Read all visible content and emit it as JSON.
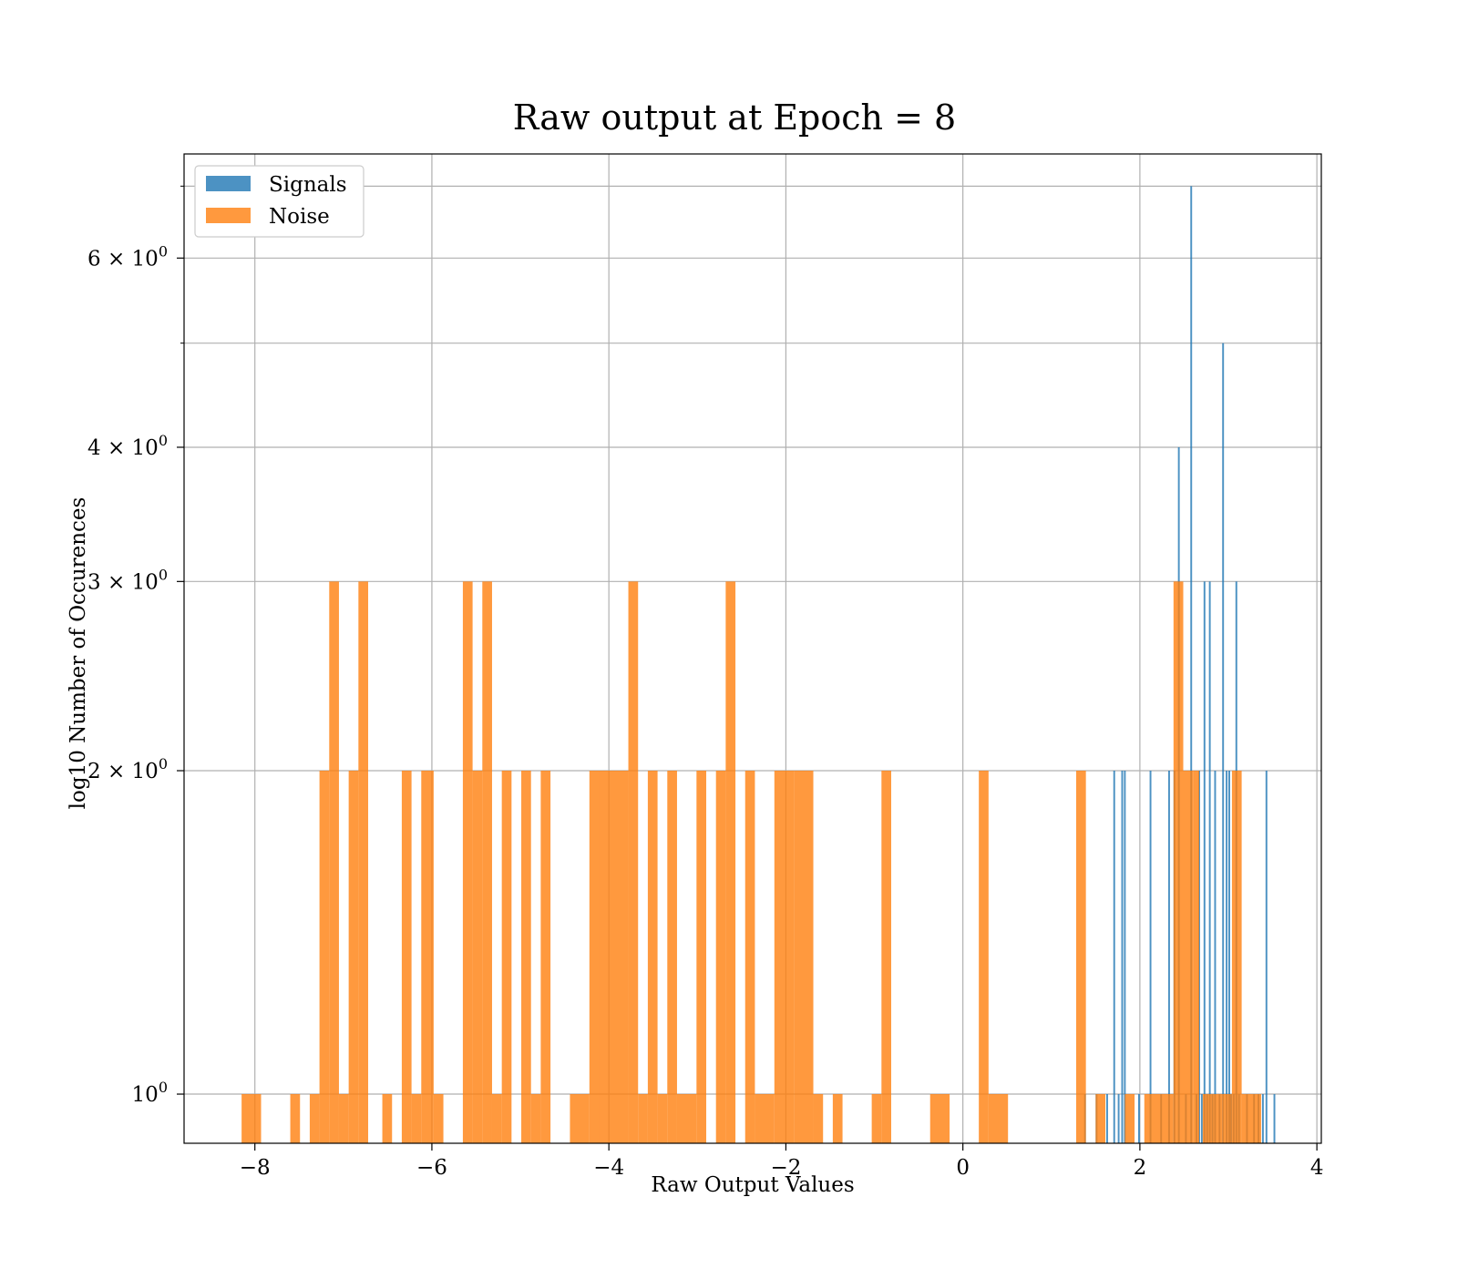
{
  "chart_data": {
    "type": "bar",
    "title": "Raw output at Epoch = 8",
    "xlabel": "Raw Output Values",
    "ylabel": "log10 Number of Occurences",
    "yscale": "log",
    "xlim": [
      -8.8,
      4.05
    ],
    "ylim": [
      0.9,
      7.5
    ],
    "grid": true,
    "legend_position": "top-left",
    "x_ticks": [
      {
        "value": -8,
        "label": "−8"
      },
      {
        "value": -6,
        "label": "−6"
      },
      {
        "value": -4,
        "label": "−4"
      },
      {
        "value": -2,
        "label": "−2"
      },
      {
        "value": 0,
        "label": "0"
      },
      {
        "value": 2,
        "label": "2"
      },
      {
        "value": 4,
        "label": "4"
      }
    ],
    "y_ticks": [
      {
        "value": 1,
        "base": "10",
        "exp": "0"
      },
      {
        "value": 2,
        "base": "2 × 10",
        "exp": "0"
      },
      {
        "value": 3,
        "base": "3 × 10",
        "exp": "0"
      },
      {
        "value": 4,
        "base": "4 × 10",
        "exp": "0"
      },
      {
        "value": 6,
        "base": "6 × 10",
        "exp": "0"
      }
    ],
    "y_minor_ticks": [
      5,
      7
    ],
    "series": [
      {
        "name": "Signals",
        "color": "#1f77b4",
        "bins": [
          {
            "x0": 1.37,
            "x1": 1.39,
            "y": 1
          },
          {
            "x0": 1.5,
            "x1": 1.52,
            "y": 1
          },
          {
            "x0": 1.62,
            "x1": 1.64,
            "y": 1
          },
          {
            "x0": 1.7,
            "x1": 1.72,
            "y": 2
          },
          {
            "x0": 1.75,
            "x1": 1.77,
            "y": 1
          },
          {
            "x0": 1.79,
            "x1": 1.81,
            "y": 2
          },
          {
            "x0": 1.82,
            "x1": 1.84,
            "y": 2
          },
          {
            "x0": 1.98,
            "x1": 2.0,
            "y": 1
          },
          {
            "x0": 2.11,
            "x1": 2.13,
            "y": 2
          },
          {
            "x0": 2.23,
            "x1": 2.25,
            "y": 1
          },
          {
            "x0": 2.32,
            "x1": 2.34,
            "y": 2
          },
          {
            "x0": 2.38,
            "x1": 2.4,
            "y": 2
          },
          {
            "x0": 2.43,
            "x1": 2.45,
            "y": 4
          },
          {
            "x0": 2.51,
            "x1": 2.53,
            "y": 1
          },
          {
            "x0": 2.57,
            "x1": 2.59,
            "y": 7
          },
          {
            "x0": 2.63,
            "x1": 2.65,
            "y": 1
          },
          {
            "x0": 2.66,
            "x1": 2.68,
            "y": 2
          },
          {
            "x0": 2.69,
            "x1": 2.71,
            "y": 1
          },
          {
            "x0": 2.72,
            "x1": 2.74,
            "y": 3
          },
          {
            "x0": 2.75,
            "x1": 2.77,
            "y": 1
          },
          {
            "x0": 2.78,
            "x1": 2.8,
            "y": 3
          },
          {
            "x0": 2.81,
            "x1": 2.83,
            "y": 1
          },
          {
            "x0": 2.84,
            "x1": 2.86,
            "y": 2
          },
          {
            "x0": 2.89,
            "x1": 2.91,
            "y": 1
          },
          {
            "x0": 2.93,
            "x1": 2.95,
            "y": 5
          },
          {
            "x0": 2.97,
            "x1": 2.99,
            "y": 2
          },
          {
            "x0": 3.0,
            "x1": 3.02,
            "y": 2
          },
          {
            "x0": 3.02,
            "x1": 3.04,
            "y": 1
          },
          {
            "x0": 3.05,
            "x1": 3.07,
            "y": 1
          },
          {
            "x0": 3.08,
            "x1": 3.1,
            "y": 3
          },
          {
            "x0": 3.11,
            "x1": 3.13,
            "y": 1
          },
          {
            "x0": 3.2,
            "x1": 3.22,
            "y": 1
          },
          {
            "x0": 3.28,
            "x1": 3.3,
            "y": 1
          },
          {
            "x0": 3.33,
            "x1": 3.35,
            "y": 1
          },
          {
            "x0": 3.38,
            "x1": 3.4,
            "y": 1
          },
          {
            "x0": 3.42,
            "x1": 3.44,
            "y": 2
          },
          {
            "x0": 3.51,
            "x1": 3.53,
            "y": 1
          }
        ]
      },
      {
        "name": "Noise",
        "color": "#ff7f0e",
        "bins": [
          {
            "x0": -8.15,
            "x1": -7.93,
            "y": 1
          },
          {
            "x0": -7.6,
            "x1": -7.49,
            "y": 1
          },
          {
            "x0": -7.38,
            "x1": -7.27,
            "y": 1
          },
          {
            "x0": -7.27,
            "x1": -7.16,
            "y": 2
          },
          {
            "x0": -7.16,
            "x1": -7.05,
            "y": 3
          },
          {
            "x0": -7.05,
            "x1": -6.94,
            "y": 1
          },
          {
            "x0": -6.94,
            "x1": -6.83,
            "y": 2
          },
          {
            "x0": -6.83,
            "x1": -6.72,
            "y": 3
          },
          {
            "x0": -6.56,
            "x1": -6.45,
            "y": 1
          },
          {
            "x0": -6.34,
            "x1": -6.23,
            "y": 2
          },
          {
            "x0": -6.23,
            "x1": -6.12,
            "y": 1
          },
          {
            "x0": -6.12,
            "x1": -5.98,
            "y": 2
          },
          {
            "x0": -5.98,
            "x1": -5.87,
            "y": 1
          },
          {
            "x0": -5.65,
            "x1": -5.54,
            "y": 3
          },
          {
            "x0": -5.54,
            "x1": -5.43,
            "y": 2
          },
          {
            "x0": -5.43,
            "x1": -5.32,
            "y": 3
          },
          {
            "x0": -5.32,
            "x1": -5.21,
            "y": 1
          },
          {
            "x0": -5.21,
            "x1": -5.1,
            "y": 2
          },
          {
            "x0": -4.99,
            "x1": -4.88,
            "y": 2
          },
          {
            "x0": -4.88,
            "x1": -4.77,
            "y": 1
          },
          {
            "x0": -4.77,
            "x1": -4.66,
            "y": 2
          },
          {
            "x0": -4.44,
            "x1": -4.22,
            "y": 1
          },
          {
            "x0": -4.22,
            "x1": -4.11,
            "y": 2
          },
          {
            "x0": -4.11,
            "x1": -3.78,
            "y": 2
          },
          {
            "x0": -3.78,
            "x1": -3.67,
            "y": 3
          },
          {
            "x0": -3.67,
            "x1": -3.56,
            "y": 1
          },
          {
            "x0": -3.56,
            "x1": -3.45,
            "y": 2
          },
          {
            "x0": -3.45,
            "x1": -3.34,
            "y": 1
          },
          {
            "x0": -3.34,
            "x1": -3.23,
            "y": 2
          },
          {
            "x0": -3.23,
            "x1": -3.01,
            "y": 1
          },
          {
            "x0": -3.01,
            "x1": -2.9,
            "y": 2
          },
          {
            "x0": -2.79,
            "x1": -2.68,
            "y": 2
          },
          {
            "x0": -2.68,
            "x1": -2.57,
            "y": 3
          },
          {
            "x0": -2.46,
            "x1": -2.35,
            "y": 2
          },
          {
            "x0": -2.35,
            "x1": -2.13,
            "y": 1
          },
          {
            "x0": -2.13,
            "x1": -1.91,
            "y": 2
          },
          {
            "x0": -1.91,
            "x1": -1.69,
            "y": 2
          },
          {
            "x0": -1.69,
            "x1": -1.58,
            "y": 1
          },
          {
            "x0": -1.47,
            "x1": -1.36,
            "y": 1
          },
          {
            "x0": -1.03,
            "x1": -0.92,
            "y": 1
          },
          {
            "x0": -0.92,
            "x1": -0.81,
            "y": 2
          },
          {
            "x0": -0.37,
            "x1": -0.15,
            "y": 1
          },
          {
            "x0": 0.18,
            "x1": 0.29,
            "y": 2
          },
          {
            "x0": 0.29,
            "x1": 0.51,
            "y": 1
          },
          {
            "x0": 1.28,
            "x1": 1.39,
            "y": 2
          },
          {
            "x0": 1.5,
            "x1": 1.61,
            "y": 1
          },
          {
            "x0": 1.83,
            "x1": 1.94,
            "y": 1
          },
          {
            "x0": 2.05,
            "x1": 2.38,
            "y": 1
          },
          {
            "x0": 2.38,
            "x1": 2.49,
            "y": 3
          },
          {
            "x0": 2.49,
            "x1": 2.6,
            "y": 2
          },
          {
            "x0": 2.6,
            "x1": 2.67,
            "y": 2
          },
          {
            "x0": 2.71,
            "x1": 2.82,
            "y": 1
          },
          {
            "x0": 2.82,
            "x1": 2.93,
            "y": 1
          },
          {
            "x0": 2.93,
            "x1": 3.04,
            "y": 1
          },
          {
            "x0": 3.04,
            "x1": 3.15,
            "y": 2
          },
          {
            "x0": 3.15,
            "x1": 3.37,
            "y": 1
          }
        ]
      }
    ]
  }
}
